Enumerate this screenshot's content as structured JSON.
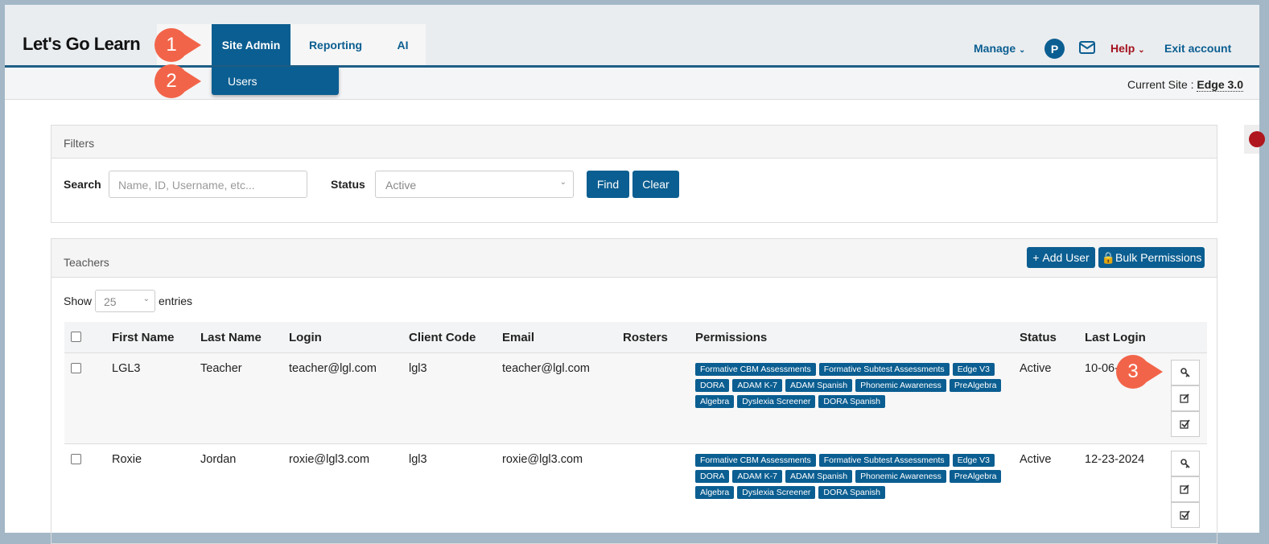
{
  "header": {
    "logo": "Let's Go Learn",
    "nav": [
      "Site Admin",
      "Reporting",
      "AI"
    ],
    "dropdown": [
      "Users"
    ],
    "right": {
      "manage": "Manage",
      "avatar": "P",
      "help": "Help",
      "exit": "Exit account"
    }
  },
  "subheader": {
    "label": "Current Site :",
    "site": "Edge 3.0"
  },
  "annotations": [
    "1",
    "2",
    "3"
  ],
  "filters": {
    "title": "Filters",
    "search_label": "Search",
    "search_placeholder": "Name, ID, Username, etc...",
    "status_label": "Status",
    "status_value": "Active",
    "find": "Find",
    "clear": "Clear"
  },
  "teachers": {
    "title": "Teachers",
    "add_user": "Add User",
    "bulk_permissions": "Bulk Permissions",
    "show": "Show",
    "page_size": "25",
    "entries": "entries",
    "columns": [
      "First Name",
      "Last Name",
      "Login",
      "Client Code",
      "Email",
      "Rosters",
      "Permissions",
      "Status",
      "Last Login"
    ],
    "rows": [
      {
        "first_name": "LGL3",
        "last_name": "Teacher",
        "login": "teacher@lgl.com",
        "client_code": "lgl3",
        "email": "teacher@lgl.com",
        "permissions": [
          "Formative CBM Assessments",
          "Formative Subtest Assessments",
          "Edge V3",
          "DORA",
          "ADAM K-7",
          "ADAM Spanish",
          "Phonemic Awareness",
          "PreAlgebra",
          "Algebra",
          "Dyslexia Screener",
          "DORA Spanish"
        ],
        "status": "Active",
        "last_login": "10-06-"
      },
      {
        "first_name": "Roxie",
        "last_name": "Jordan",
        "login": "roxie@lgl3.com",
        "client_code": "lgl3",
        "email": "roxie@lgl3.com",
        "permissions": [
          "Formative CBM Assessments",
          "Formative Subtest Assessments",
          "Edge V3",
          "DORA",
          "ADAM K-7",
          "ADAM Spanish",
          "Phonemic Awareness",
          "PreAlgebra",
          "Algebra",
          "Dyslexia Screener",
          "DORA Spanish"
        ],
        "status": "Active",
        "last_login": "12-23-2024"
      }
    ]
  }
}
